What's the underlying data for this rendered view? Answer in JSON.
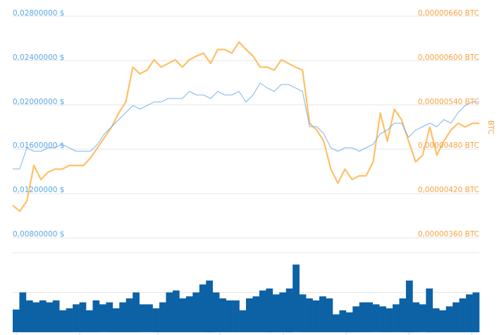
{
  "chart_data": [
    {
      "type": "line",
      "left_axis": {
        "ticks": [
          "0,00800000 $",
          "0,01200000 $",
          "0,01600000 $",
          "0,02000000 $",
          "0,02400000 $",
          "0,02800000 $"
        ],
        "ylim": [
          0.008,
          0.028
        ],
        "color": "#5aa7e8"
      },
      "right_axis": {
        "label": "BTC",
        "ticks": [
          "0,00000360 BTC",
          "0,00000420 BTC",
          "0,00000480 BTC",
          "0,00000540 BTC",
          "0,00000600 BTC",
          "0,00000660 BTC"
        ],
        "ylim": [
          360,
          660
        ],
        "unit_scale": "1e-8 BTC",
        "color": "#f7a240"
      },
      "grid": true,
      "series": [
        {
          "axis": "right",
          "color": "#ffbf66",
          "values": [
            404,
            396,
            410,
            458,
            439,
            449,
            453,
            453,
            458,
            458,
            458,
            468,
            482,
            496,
            510,
            529,
            544,
            591,
            582,
            587,
            601,
            591,
            596,
            601,
            591,
            601,
            606,
            610,
            596,
            615,
            615,
            610,
            625,
            615,
            606,
            591,
            591,
            587,
            601,
            596,
            591,
            587,
            515,
            506,
            491,
            453,
            434,
            453,
            439,
            444,
            444,
            463,
            529,
            491,
            534,
            520,
            491,
            463,
            472,
            510,
            472,
            491,
            506,
            515,
            510,
            515,
            515
          ]
        },
        {
          "axis": "left",
          "color": "#7cb5ec",
          "values": [
            0.01422,
            0.01422,
            0.01613,
            0.01581,
            0.01581,
            0.01613,
            0.01613,
            0.01645,
            0.01613,
            0.01581,
            0.01581,
            0.01581,
            0.01645,
            0.0174,
            0.01803,
            0.01867,
            0.0193,
            0.01994,
            0.01962,
            0.01994,
            0.02026,
            0.02026,
            0.02057,
            0.02057,
            0.02057,
            0.02121,
            0.02089,
            0.02089,
            0.02057,
            0.02121,
            0.02089,
            0.02089,
            0.02121,
            0.02026,
            0.02089,
            0.02197,
            0.02153,
            0.02121,
            0.02184,
            0.02184,
            0.02153,
            0.02121,
            0.01803,
            0.01803,
            0.0174,
            0.01613,
            0.01581,
            0.01613,
            0.01613,
            0.01581,
            0.01613,
            0.01645,
            0.0174,
            0.01772,
            0.01835,
            0.01835,
            0.01708,
            0.01772,
            0.01803,
            0.01835,
            0.01803,
            0.01867,
            0.01835,
            0.0193,
            0.01994,
            0.02026,
            0.02026
          ]
        }
      ]
    },
    {
      "type": "bar",
      "color": "#0d62a6",
      "ylim": [
        0,
        2
      ],
      "grid": true,
      "values": [
        0.57,
        1.0,
        0.8,
        0.75,
        0.8,
        0.75,
        0.8,
        0.55,
        0.6,
        0.7,
        0.75,
        0.55,
        0.8,
        0.7,
        0.75,
        0.6,
        0.75,
        0.85,
        1.0,
        0.7,
        0.7,
        0.6,
        0.75,
        1.0,
        1.05,
        0.85,
        0.9,
        1.0,
        1.2,
        1.3,
        1.0,
        0.85,
        0.8,
        0.8,
        0.55,
        0.85,
        0.9,
        1.05,
        1.1,
        0.95,
        1.0,
        1.1,
        1.7,
        0.95,
        0.85,
        0.8,
        0.9,
        0.85,
        0.45,
        0.55,
        0.5,
        0.65,
        0.75,
        0.75,
        0.7,
        0.65,
        0.6,
        0.7,
        0.85,
        1.3,
        0.75,
        0.7,
        1.1,
        0.6,
        0.55,
        0.65,
        0.75,
        0.85,
        0.95,
        1.0
      ]
    }
  ]
}
